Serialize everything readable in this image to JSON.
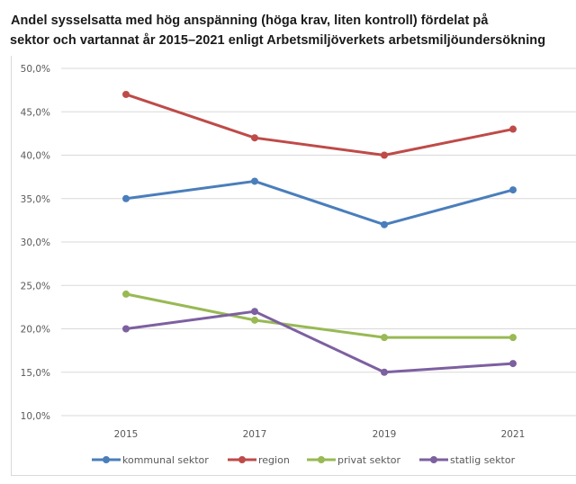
{
  "chart_data": {
    "type": "line",
    "title_line1": "Andel sysselsatta med hög anspänning (höga krav, liten kontroll) fördelat på",
    "title_line2": "sektor och vartannat år 2015–2021 enligt Arbetsmiljöverkets arbetsmiljöundersökning",
    "xlabel": "",
    "ylabel": "",
    "categories": [
      "2015",
      "2017",
      "2019",
      "2021"
    ],
    "ylim": [
      10,
      50
    ],
    "yticks": [
      50,
      45,
      40,
      35,
      30,
      25,
      20,
      15,
      10
    ],
    "ytick_labels": [
      "50,0%",
      "45,0%",
      "40,0%",
      "35,0%",
      "30,0%",
      "25,0%",
      "20,0%",
      "15,0%",
      "10,0%"
    ],
    "grid": true,
    "legend_position": "bottom",
    "series": [
      {
        "name": "kommunal sektor",
        "color": "#4a7ebb",
        "values": [
          35,
          37,
          32,
          36
        ]
      },
      {
        "name": "region",
        "color": "#be4b48",
        "values": [
          47,
          42,
          40,
          43
        ]
      },
      {
        "name": "privat sektor",
        "color": "#98b954",
        "values": [
          24,
          21,
          19,
          19
        ]
      },
      {
        "name": "statlig sektor",
        "color": "#7d60a0",
        "values": [
          20,
          22,
          15,
          16
        ]
      }
    ]
  }
}
